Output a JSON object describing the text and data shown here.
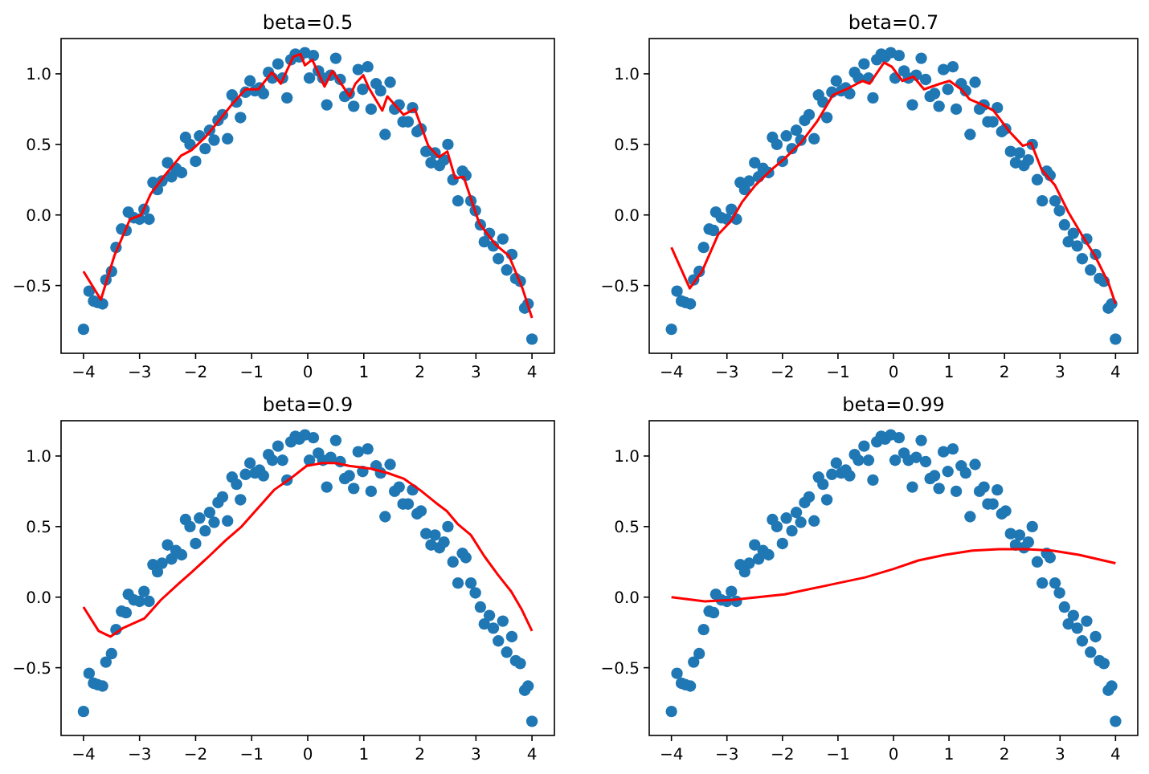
{
  "chart_data": [
    {
      "type": "scatter",
      "title": "beta=0.5",
      "xlim": [
        -4.4,
        4.4
      ],
      "ylim": [
        -0.98,
        1.25
      ],
      "marker": "circle",
      "xticks": [
        {
          "value": -4,
          "label": "−4"
        },
        {
          "value": -3,
          "label": "−3"
        },
        {
          "value": -2,
          "label": "−2"
        },
        {
          "value": -1,
          "label": "−1"
        },
        0,
        1,
        2,
        3,
        4
      ],
      "yticks": [
        {
          "value": -0.5,
          "label": "−0.5"
        },
        {
          "value": 0,
          "label": "0.0"
        },
        {
          "value": 0.5,
          "label": "0.5"
        },
        {
          "value": 1,
          "label": "1.0"
        }
      ],
      "series": [
        {
          "type": "scatter",
          "color": "#1f77b4",
          "x": [
            -4.0,
            -3.9,
            -3.82,
            -3.75,
            -3.66,
            -3.6,
            -3.5,
            -3.42,
            -3.32,
            -3.24,
            -3.2,
            -3.1,
            -3.0,
            -2.92,
            -2.83,
            -2.76,
            -2.68,
            -2.6,
            -2.5,
            -2.43,
            -2.35,
            -2.25,
            -2.18,
            -2.1,
            -2.0,
            -1.93,
            -1.83,
            -1.75,
            -1.67,
            -1.6,
            -1.52,
            -1.43,
            -1.35,
            -1.27,
            -1.2,
            -1.11,
            -1.03,
            -0.94,
            -0.86,
            -0.79,
            -0.7,
            -0.63,
            -0.53,
            -0.45,
            -0.37,
            -0.3,
            -0.22,
            -0.15,
            -0.05,
            0.03,
            0.1,
            0.19,
            0.27,
            0.34,
            0.41,
            0.5,
            0.58,
            0.66,
            0.74,
            0.82,
            0.9,
            0.98,
            1.07,
            1.13,
            1.22,
            1.3,
            1.38,
            1.47,
            1.55,
            1.63,
            1.7,
            1.79,
            1.87,
            1.95,
            2.02,
            2.11,
            2.2,
            2.27,
            2.35,
            2.43,
            2.5,
            2.59,
            2.68,
            2.76,
            2.82,
            2.91,
            2.99,
            3.08,
            3.15,
            3.24,
            3.31,
            3.4,
            3.48,
            3.55,
            3.64,
            3.71,
            3.79,
            3.87,
            3.93,
            4.0
          ],
          "values": [
            -0.81,
            -0.54,
            -0.61,
            -0.62,
            -0.63,
            -0.46,
            -0.4,
            -0.23,
            -0.1,
            -0.11,
            0.02,
            -0.02,
            -0.03,
            0.04,
            -0.03,
            0.23,
            0.18,
            0.24,
            0.37,
            0.27,
            0.33,
            0.3,
            0.55,
            0.5,
            0.38,
            0.56,
            0.47,
            0.6,
            0.53,
            0.67,
            0.71,
            0.54,
            0.85,
            0.8,
            0.69,
            0.87,
            0.95,
            0.88,
            0.9,
            0.86,
            1.01,
            0.97,
            1.07,
            0.97,
            0.83,
            1.1,
            1.14,
            1.12,
            1.15,
            0.97,
            1.13,
            1.02,
            0.97,
            0.78,
            0.99,
            1.11,
            0.96,
            0.84,
            0.86,
            0.77,
            1.03,
            0.89,
            1.05,
            0.75,
            0.93,
            0.88,
            0.57,
            0.94,
            0.75,
            0.78,
            0.66,
            0.66,
            0.76,
            0.59,
            0.61,
            0.45,
            0.37,
            0.44,
            0.35,
            0.39,
            0.5,
            0.25,
            0.1,
            0.31,
            0.28,
            0.1,
            0.03,
            -0.07,
            -0.19,
            -0.13,
            -0.22,
            -0.31,
            -0.17,
            -0.39,
            -0.28,
            -0.45,
            -0.47,
            -0.66,
            -0.63,
            -0.88
          ]
        },
        {
          "type": "line",
          "color": "#ff0000",
          "marker": "none",
          "x": [
            -4,
            -3.69,
            -3.45,
            -3.17,
            -2.97,
            -2.8,
            -2.55,
            -2.26,
            -2.07,
            -1.83,
            -1.6,
            -1.36,
            -1.11,
            -0.88,
            -0.64,
            -0.48,
            -0.26,
            -0.13,
            -0.05,
            0.08,
            0.3,
            0.44,
            0.75,
            0.85,
            0.99,
            1.09,
            1.33,
            1.42,
            1.71,
            1.91,
            2.15,
            2.34,
            2.49,
            2.63,
            2.78,
            3.06,
            3.35,
            3.59,
            3.83,
            4.0
          ],
          "values": [
            -0.4,
            -0.6,
            -0.29,
            -0.03,
            0,
            0.15,
            0.28,
            0.42,
            0.46,
            0.55,
            0.66,
            0.78,
            0.89,
            0.89,
            1.01,
            0.93,
            1.12,
            1.14,
            1.06,
            1.1,
            0.91,
            1.02,
            0.84,
            0.93,
            0.99,
            0.9,
            0.74,
            0.84,
            0.71,
            0.75,
            0.49,
            0.41,
            0.45,
            0.26,
            0.27,
            -0.06,
            -0.21,
            -0.29,
            -0.52,
            -0.73
          ]
        }
      ]
    },
    {
      "type": "scatter",
      "title": "beta=0.7",
      "xlim": [
        -4.4,
        4.4
      ],
      "ylim": [
        -0.98,
        1.25
      ],
      "marker": "circle",
      "xticks": [
        {
          "value": -4,
          "label": "−4"
        },
        {
          "value": -3,
          "label": "−3"
        },
        {
          "value": -2,
          "label": "−2"
        },
        {
          "value": -1,
          "label": "−1"
        },
        0,
        1,
        2,
        3,
        4
      ],
      "yticks": [
        {
          "value": -0.5,
          "label": "−0.5"
        },
        {
          "value": 0,
          "label": "0.0"
        },
        {
          "value": 0.5,
          "label": "0.5"
        },
        {
          "value": 1,
          "label": "1.0"
        }
      ],
      "series": [
        {
          "type": "scatter",
          "color": "#1f77b4",
          "x": [
            -4.0,
            -3.9,
            -3.82,
            -3.75,
            -3.66,
            -3.6,
            -3.5,
            -3.42,
            -3.32,
            -3.24,
            -3.2,
            -3.1,
            -3.0,
            -2.92,
            -2.83,
            -2.76,
            -2.68,
            -2.6,
            -2.5,
            -2.43,
            -2.35,
            -2.25,
            -2.18,
            -2.1,
            -2.0,
            -1.93,
            -1.83,
            -1.75,
            -1.67,
            -1.6,
            -1.52,
            -1.43,
            -1.35,
            -1.27,
            -1.2,
            -1.11,
            -1.03,
            -0.94,
            -0.86,
            -0.79,
            -0.7,
            -0.63,
            -0.53,
            -0.45,
            -0.37,
            -0.3,
            -0.22,
            -0.15,
            -0.05,
            0.03,
            0.1,
            0.19,
            0.27,
            0.34,
            0.41,
            0.5,
            0.58,
            0.66,
            0.74,
            0.82,
            0.9,
            0.98,
            1.07,
            1.13,
            1.22,
            1.3,
            1.38,
            1.47,
            1.55,
            1.63,
            1.7,
            1.79,
            1.87,
            1.95,
            2.02,
            2.11,
            2.2,
            2.27,
            2.35,
            2.43,
            2.5,
            2.59,
            2.68,
            2.76,
            2.82,
            2.91,
            2.99,
            3.08,
            3.15,
            3.24,
            3.31,
            3.4,
            3.48,
            3.55,
            3.64,
            3.71,
            3.79,
            3.87,
            3.93,
            4.0
          ],
          "values": [
            -0.81,
            -0.54,
            -0.61,
            -0.62,
            -0.63,
            -0.46,
            -0.4,
            -0.23,
            -0.1,
            -0.11,
            0.02,
            -0.02,
            -0.03,
            0.04,
            -0.03,
            0.23,
            0.18,
            0.24,
            0.37,
            0.27,
            0.33,
            0.3,
            0.55,
            0.5,
            0.38,
            0.56,
            0.47,
            0.6,
            0.53,
            0.67,
            0.71,
            0.54,
            0.85,
            0.8,
            0.69,
            0.87,
            0.95,
            0.88,
            0.9,
            0.86,
            1.01,
            0.97,
            1.07,
            0.97,
            0.83,
            1.1,
            1.14,
            1.12,
            1.15,
            0.97,
            1.13,
            1.02,
            0.97,
            0.78,
            0.99,
            1.11,
            0.96,
            0.84,
            0.86,
            0.77,
            1.03,
            0.89,
            1.05,
            0.75,
            0.93,
            0.88,
            0.57,
            0.94,
            0.75,
            0.78,
            0.66,
            0.66,
            0.76,
            0.59,
            0.61,
            0.45,
            0.37,
            0.44,
            0.35,
            0.39,
            0.5,
            0.25,
            0.1,
            0.31,
            0.28,
            0.1,
            0.03,
            -0.07,
            -0.19,
            -0.13,
            -0.22,
            -0.31,
            -0.17,
            -0.39,
            -0.28,
            -0.45,
            -0.47,
            -0.66,
            -0.63,
            -0.88
          ]
        },
        {
          "type": "line",
          "color": "#ff0000",
          "marker": "none",
          "x": [
            -4,
            -3.67,
            -3.45,
            -3.16,
            -2.92,
            -2.73,
            -2.49,
            -2.2,
            -1.96,
            -1.67,
            -1.38,
            -1.09,
            -0.8,
            -0.56,
            -0.43,
            -0.17,
            -0.03,
            0.16,
            0.36,
            0.55,
            0.84,
            1.01,
            1.22,
            1.37,
            1.61,
            1.8,
            2.09,
            2.33,
            2.48,
            2.67,
            2.91,
            3.15,
            3.39,
            3.63,
            3.87,
            4.0
          ],
          "values": [
            -0.23,
            -0.52,
            -0.4,
            -0.14,
            -0.04,
            0.09,
            0.21,
            0.32,
            0.4,
            0.51,
            0.66,
            0.85,
            0.9,
            0.95,
            0.93,
            1.08,
            1.05,
            0.95,
            0.98,
            0.89,
            0.93,
            0.95,
            0.89,
            0.82,
            0.78,
            0.74,
            0.59,
            0.49,
            0.51,
            0.32,
            0.21,
            0.02,
            -0.14,
            -0.29,
            -0.48,
            -0.63
          ]
        }
      ]
    },
    {
      "type": "scatter",
      "title": "beta=0.9",
      "xlim": [
        -4.4,
        4.4
      ],
      "ylim": [
        -0.98,
        1.25
      ],
      "marker": "circle",
      "xticks": [
        {
          "value": -4,
          "label": "−4"
        },
        {
          "value": -3,
          "label": "−3"
        },
        {
          "value": -2,
          "label": "−2"
        },
        {
          "value": -1,
          "label": "−1"
        },
        0,
        1,
        2,
        3,
        4
      ],
      "yticks": [
        {
          "value": -0.5,
          "label": "−0.5"
        },
        {
          "value": 0,
          "label": "0.0"
        },
        {
          "value": 0.5,
          "label": "0.5"
        },
        {
          "value": 1,
          "label": "1.0"
        }
      ],
      "series": [
        {
          "type": "scatter",
          "color": "#1f77b4",
          "x": [
            -4.0,
            -3.9,
            -3.82,
            -3.75,
            -3.66,
            -3.6,
            -3.5,
            -3.42,
            -3.32,
            -3.24,
            -3.2,
            -3.1,
            -3.0,
            -2.92,
            -2.83,
            -2.76,
            -2.68,
            -2.6,
            -2.5,
            -2.43,
            -2.35,
            -2.25,
            -2.18,
            -2.1,
            -2.0,
            -1.93,
            -1.83,
            -1.75,
            -1.67,
            -1.6,
            -1.52,
            -1.43,
            -1.35,
            -1.27,
            -1.2,
            -1.11,
            -1.03,
            -0.94,
            -0.86,
            -0.79,
            -0.7,
            -0.63,
            -0.53,
            -0.45,
            -0.37,
            -0.3,
            -0.22,
            -0.15,
            -0.05,
            0.03,
            0.1,
            0.19,
            0.27,
            0.34,
            0.41,
            0.5,
            0.58,
            0.66,
            0.74,
            0.82,
            0.9,
            0.98,
            1.07,
            1.13,
            1.22,
            1.3,
            1.38,
            1.47,
            1.55,
            1.63,
            1.7,
            1.79,
            1.87,
            1.95,
            2.02,
            2.11,
            2.2,
            2.27,
            2.35,
            2.43,
            2.5,
            2.59,
            2.68,
            2.76,
            2.82,
            2.91,
            2.99,
            3.08,
            3.15,
            3.24,
            3.31,
            3.4,
            3.48,
            3.55,
            3.64,
            3.71,
            3.79,
            3.87,
            3.93,
            4.0
          ],
          "values": [
            -0.81,
            -0.54,
            -0.61,
            -0.62,
            -0.63,
            -0.46,
            -0.4,
            -0.23,
            -0.1,
            -0.11,
            0.02,
            -0.02,
            -0.03,
            0.04,
            -0.03,
            0.23,
            0.18,
            0.24,
            0.37,
            0.27,
            0.33,
            0.3,
            0.55,
            0.5,
            0.38,
            0.56,
            0.47,
            0.6,
            0.53,
            0.67,
            0.71,
            0.54,
            0.85,
            0.8,
            0.69,
            0.87,
            0.95,
            0.88,
            0.9,
            0.86,
            1.01,
            0.97,
            1.07,
            0.97,
            0.83,
            1.1,
            1.14,
            1.12,
            1.15,
            0.97,
            1.13,
            1.02,
            0.97,
            0.78,
            0.99,
            1.11,
            0.96,
            0.84,
            0.86,
            0.77,
            1.03,
            0.89,
            1.05,
            0.75,
            0.93,
            0.88,
            0.57,
            0.94,
            0.75,
            0.78,
            0.66,
            0.66,
            0.76,
            0.59,
            0.61,
            0.45,
            0.37,
            0.44,
            0.35,
            0.39,
            0.5,
            0.25,
            0.1,
            0.31,
            0.28,
            0.1,
            0.03,
            -0.07,
            -0.19,
            -0.13,
            -0.22,
            -0.31,
            -0.17,
            -0.39,
            -0.28,
            -0.45,
            -0.47,
            -0.66,
            -0.63,
            -0.88
          ]
        },
        {
          "type": "line",
          "color": "#ff0000",
          "marker": "none",
          "x": [
            -4,
            -3.73,
            -3.52,
            -3.3,
            -2.91,
            -2.62,
            -2.29,
            -2.09,
            -1.76,
            -1.47,
            -1.18,
            -0.89,
            -0.6,
            -0.31,
            -0.02,
            0.26,
            0.5,
            0.74,
            1.13,
            1.42,
            1.71,
            2.0,
            2.28,
            2.48,
            2.67,
            2.91,
            3.15,
            3.39,
            3.63,
            3.82,
            4.0
          ],
          "values": [
            -0.07,
            -0.24,
            -0.28,
            -0.22,
            -0.15,
            -0.02,
            0.1,
            0.17,
            0.29,
            0.4,
            0.5,
            0.63,
            0.76,
            0.84,
            0.93,
            0.95,
            0.95,
            0.93,
            0.91,
            0.88,
            0.84,
            0.76,
            0.67,
            0.61,
            0.52,
            0.44,
            0.29,
            0.16,
            0.04,
            -0.09,
            -0.24
          ]
        }
      ]
    },
    {
      "type": "scatter",
      "title": "beta=0.99",
      "xlim": [
        -4.4,
        4.4
      ],
      "ylim": [
        -0.98,
        1.25
      ],
      "marker": "circle",
      "xticks": [
        {
          "value": -4,
          "label": "−4"
        },
        {
          "value": -3,
          "label": "−3"
        },
        {
          "value": -2,
          "label": "−2"
        },
        {
          "value": -1,
          "label": "−1"
        },
        0,
        1,
        2,
        3,
        4
      ],
      "yticks": [
        {
          "value": -0.5,
          "label": "−0.5"
        },
        {
          "value": 0,
          "label": "0.0"
        },
        {
          "value": 0.5,
          "label": "0.5"
        },
        {
          "value": 1,
          "label": "1.0"
        }
      ],
      "series": [
        {
          "type": "scatter",
          "color": "#1f77b4",
          "x": [
            -4.0,
            -3.9,
            -3.82,
            -3.75,
            -3.66,
            -3.6,
            -3.5,
            -3.42,
            -3.32,
            -3.24,
            -3.2,
            -3.1,
            -3.0,
            -2.92,
            -2.83,
            -2.76,
            -2.68,
            -2.6,
            -2.5,
            -2.43,
            -2.35,
            -2.25,
            -2.18,
            -2.1,
            -2.0,
            -1.93,
            -1.83,
            -1.75,
            -1.67,
            -1.6,
            -1.52,
            -1.43,
            -1.35,
            -1.27,
            -1.2,
            -1.11,
            -1.03,
            -0.94,
            -0.86,
            -0.79,
            -0.7,
            -0.63,
            -0.53,
            -0.45,
            -0.37,
            -0.3,
            -0.22,
            -0.15,
            -0.05,
            0.03,
            0.1,
            0.19,
            0.27,
            0.34,
            0.41,
            0.5,
            0.58,
            0.66,
            0.74,
            0.82,
            0.9,
            0.98,
            1.07,
            1.13,
            1.22,
            1.3,
            1.38,
            1.47,
            1.55,
            1.63,
            1.7,
            1.79,
            1.87,
            1.95,
            2.02,
            2.11,
            2.2,
            2.27,
            2.35,
            2.43,
            2.5,
            2.59,
            2.68,
            2.76,
            2.82,
            2.91,
            2.99,
            3.08,
            3.15,
            3.24,
            3.31,
            3.4,
            3.48,
            3.55,
            3.64,
            3.71,
            3.79,
            3.87,
            3.93,
            4.0
          ],
          "values": [
            -0.81,
            -0.54,
            -0.61,
            -0.62,
            -0.63,
            -0.46,
            -0.4,
            -0.23,
            -0.1,
            -0.11,
            0.02,
            -0.02,
            -0.03,
            0.04,
            -0.03,
            0.23,
            0.18,
            0.24,
            0.37,
            0.27,
            0.33,
            0.3,
            0.55,
            0.5,
            0.38,
            0.56,
            0.47,
            0.6,
            0.53,
            0.67,
            0.71,
            0.54,
            0.85,
            0.8,
            0.69,
            0.87,
            0.95,
            0.88,
            0.9,
            0.86,
            1.01,
            0.97,
            1.07,
            0.97,
            0.83,
            1.1,
            1.14,
            1.12,
            1.15,
            0.97,
            1.13,
            1.02,
            0.97,
            0.78,
            0.99,
            1.11,
            0.96,
            0.84,
            0.86,
            0.77,
            1.03,
            0.89,
            1.05,
            0.75,
            0.93,
            0.88,
            0.57,
            0.94,
            0.75,
            0.78,
            0.66,
            0.66,
            0.76,
            0.59,
            0.61,
            0.45,
            0.37,
            0.44,
            0.35,
            0.39,
            0.5,
            0.25,
            0.1,
            0.31,
            0.28,
            0.1,
            0.03,
            -0.07,
            -0.19,
            -0.13,
            -0.22,
            -0.31,
            -0.17,
            -0.39,
            -0.28,
            -0.45,
            -0.47,
            -0.66,
            -0.63,
            -0.88
          ]
        },
        {
          "type": "line",
          "color": "#ff0000",
          "marker": "none",
          "x": [
            -4,
            -3.4,
            -2.92,
            -1.96,
            -0.99,
            -0.51,
            0,
            0.45,
            0.93,
            1.42,
            1.9,
            2.38,
            2.86,
            3.34,
            4.0
          ],
          "values": [
            0,
            -0.03,
            -0.02,
            0.02,
            0.1,
            0.14,
            0.2,
            0.26,
            0.3,
            0.33,
            0.34,
            0.34,
            0.33,
            0.3,
            0.24
          ]
        }
      ]
    }
  ]
}
